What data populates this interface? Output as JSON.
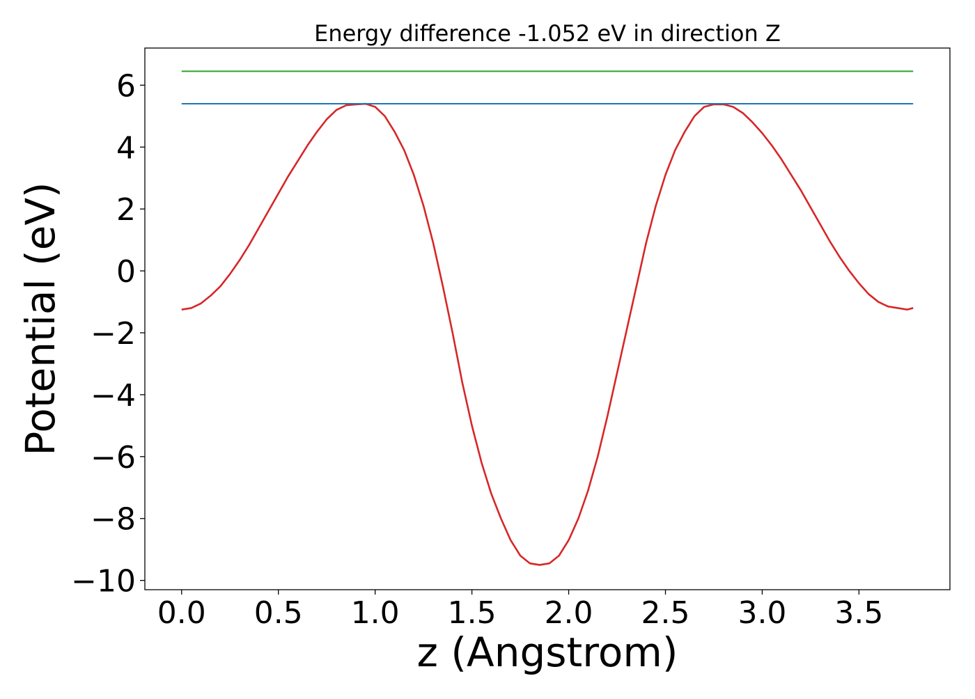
{
  "chart_data": {
    "type": "line",
    "title": "Energy difference -1.052 eV in direction Z",
    "xlabel": "z (Angstrom)",
    "ylabel": "Potential (eV)",
    "xlim": [
      -0.19,
      3.97
    ],
    "ylim": [
      -10.3,
      7.2
    ],
    "x_ticks": [
      0.0,
      0.5,
      1.0,
      1.5,
      2.0,
      2.5,
      3.0,
      3.5
    ],
    "x_tick_labels": [
      "0.0",
      "0.5",
      "1.0",
      "1.5",
      "2.0",
      "2.5",
      "3.0",
      "3.5"
    ],
    "y_ticks": [
      -10,
      -8,
      -6,
      -4,
      -2,
      0,
      2,
      4,
      6
    ],
    "y_tick_labels": [
      "−10",
      "−8",
      "−6",
      "−4",
      "−2",
      "0",
      "2",
      "4",
      "6"
    ],
    "grid": false,
    "legend": false,
    "series": [
      {
        "color": "#d62728",
        "x": [
          0.0,
          0.05,
          0.1,
          0.15,
          0.2,
          0.25,
          0.3,
          0.35,
          0.4,
          0.45,
          0.5,
          0.55,
          0.6,
          0.65,
          0.7,
          0.75,
          0.8,
          0.85,
          0.9,
          0.95,
          1.0,
          1.05,
          1.1,
          1.15,
          1.2,
          1.25,
          1.3,
          1.35,
          1.4,
          1.45,
          1.5,
          1.55,
          1.6,
          1.65,
          1.7,
          1.75,
          1.8,
          1.85,
          1.9,
          1.95,
          2.0,
          2.05,
          2.1,
          2.15,
          2.2,
          2.25,
          2.3,
          2.35,
          2.4,
          2.45,
          2.5,
          2.55,
          2.6,
          2.65,
          2.7,
          2.75,
          2.8,
          2.85,
          2.9,
          2.95,
          3.0,
          3.05,
          3.1,
          3.15,
          3.2,
          3.25,
          3.3,
          3.35,
          3.4,
          3.45,
          3.5,
          3.55,
          3.6,
          3.65,
          3.7,
          3.75,
          3.78
        ],
        "y": [
          -1.25,
          -1.2,
          -1.05,
          -0.8,
          -0.5,
          -0.1,
          0.35,
          0.85,
          1.4,
          1.95,
          2.5,
          3.05,
          3.55,
          4.05,
          4.5,
          4.9,
          5.2,
          5.35,
          5.38,
          5.4,
          5.3,
          5.0,
          4.5,
          3.9,
          3.1,
          2.1,
          0.9,
          -0.5,
          -2.0,
          -3.6,
          -5.0,
          -6.2,
          -7.2,
          -8.0,
          -8.7,
          -9.2,
          -9.45,
          -9.5,
          -9.45,
          -9.2,
          -8.7,
          -8.0,
          -7.1,
          -6.0,
          -4.7,
          -3.3,
          -1.9,
          -0.5,
          0.9,
          2.1,
          3.1,
          3.9,
          4.5,
          5.0,
          5.3,
          5.38,
          5.38,
          5.3,
          5.1,
          4.8,
          4.45,
          4.05,
          3.6,
          3.1,
          2.6,
          2.05,
          1.5,
          0.95,
          0.45,
          0.0,
          -0.4,
          -0.75,
          -1.0,
          -1.15,
          -1.2,
          -1.25,
          -1.2
        ]
      },
      {
        "color": "#1f77b4",
        "x": [
          0.0,
          3.78
        ],
        "y": [
          5.4,
          5.4
        ]
      },
      {
        "color": "#2ca02c",
        "x": [
          0.0,
          3.78
        ],
        "y": [
          6.45,
          6.45
        ]
      }
    ]
  }
}
